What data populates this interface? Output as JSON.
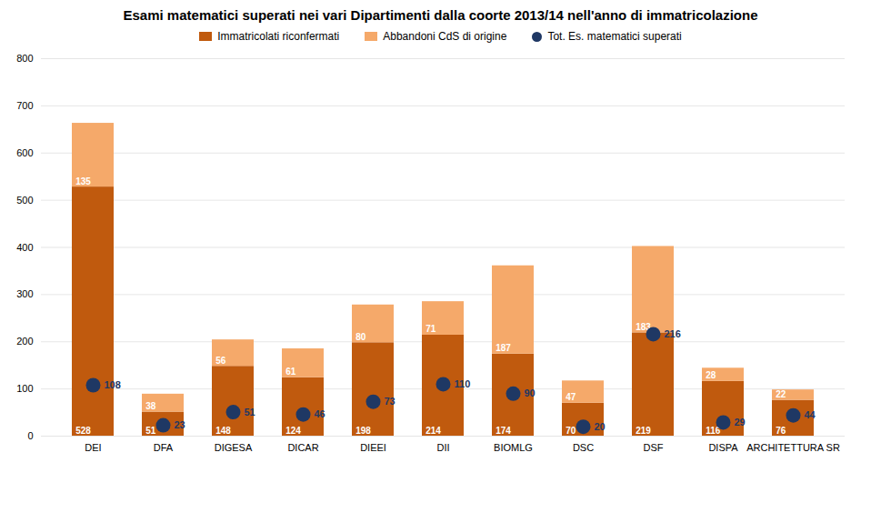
{
  "chart_data": {
    "type": "bar",
    "title": "Esami matematici superati nei vari Dipartimenti dalla coorte 2013/14 nell'anno di immatricolazione",
    "categories": [
      "DEI",
      "DFA",
      "DIGESA",
      "DICAR",
      "DIEEI",
      "DII",
      "BIOMLG",
      "DSC",
      "DSF",
      "DISPA",
      "ARCHITETTURA SR"
    ],
    "series": [
      {
        "name": "Immatricolati riconfermati",
        "type": "bar",
        "color": "#C05A0E",
        "values": [
          528,
          51,
          148,
          124,
          198,
          214,
          174,
          70,
          219,
          116,
          76
        ]
      },
      {
        "name": "Abbandoni CdS di origine",
        "type": "bar",
        "color": "#F5A96A",
        "values": [
          135,
          38,
          56,
          61,
          80,
          71,
          187,
          47,
          183,
          28,
          22
        ]
      },
      {
        "name": "Tot. Es. matematici superati",
        "type": "scatter",
        "marker": "circle",
        "color": "#1F3864",
        "values": [
          108,
          23,
          51,
          46,
          73,
          110,
          90,
          20,
          216,
          29,
          44
        ]
      }
    ],
    "stacked": true,
    "data_labels": true,
    "ylim": [
      0,
      800
    ],
    "yticks": [
      0,
      100,
      200,
      300,
      400,
      500,
      600,
      700,
      800
    ],
    "grid": true,
    "legend": "top"
  }
}
